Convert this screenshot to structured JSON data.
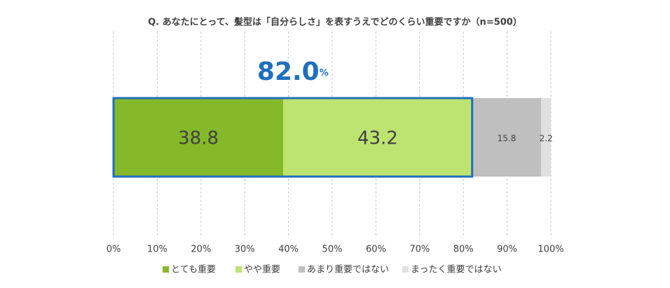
{
  "chart_data": {
    "type": "stacked-bar-horizontal",
    "title": "Q. あなたにとって、髪型は「自分らしさ」を表すうえでどのくらい重要ですか（n=500）",
    "annotation": {
      "text": "82.0",
      "suffix": "%"
    },
    "series": [
      {
        "name": "とても重要",
        "color": "#86b92a",
        "values": [
          38.8
        ]
      },
      {
        "name": "やや重要",
        "color": "#bde371",
        "values": [
          43.2
        ]
      },
      {
        "name": "あまり重要ではない",
        "color": "#bfbfbf",
        "values": [
          15.8
        ]
      },
      {
        "name": "まったく重要ではない",
        "color": "#e0e0e0",
        "values": [
          2.2
        ]
      }
    ],
    "xlim": [
      0,
      100
    ],
    "xticks": [
      {
        "value": 0,
        "label": "0%"
      },
      {
        "value": 10,
        "label": "10%"
      },
      {
        "value": 20,
        "label": "20%"
      },
      {
        "value": 30,
        "label": "30%"
      },
      {
        "value": 40,
        "label": "40%"
      },
      {
        "value": 50,
        "label": "50%"
      },
      {
        "value": 60,
        "label": "60%"
      },
      {
        "value": 70,
        "label": "70%"
      },
      {
        "value": 80,
        "label": "80%"
      },
      {
        "value": 90,
        "label": "90%"
      },
      {
        "value": 100,
        "label": "100%"
      }
    ],
    "grid": true,
    "highlight_color": "#1f6fc0"
  }
}
